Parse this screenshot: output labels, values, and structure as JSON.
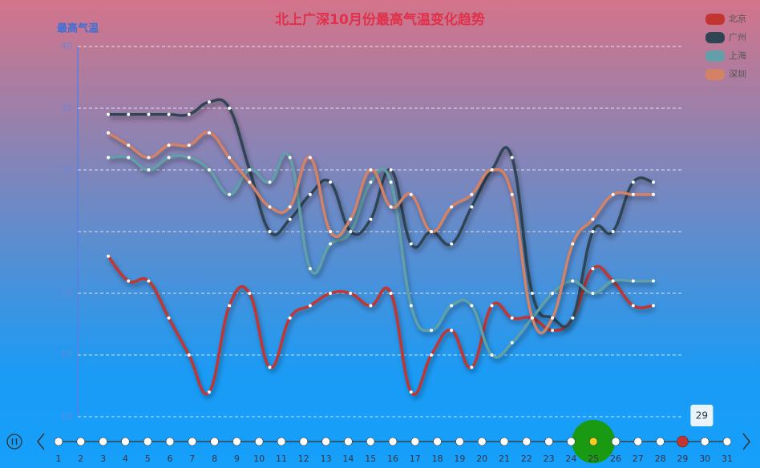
{
  "chart_data": {
    "type": "line",
    "title": "北上广深10月份最高气温变化趋势",
    "y_axis_label": "最高气温",
    "categories": [
      null,
      null,
      null,
      null,
      null,
      null,
      null,
      null,
      null,
      null,
      null,
      null,
      null,
      null,
      null,
      null,
      null,
      null,
      null,
      null,
      null,
      null,
      null,
      null,
      null,
      null,
      null,
      null
    ],
    "series": [
      {
        "name": "北京",
        "color": "#c23531",
        "values": [
          23,
          21,
          21,
          18,
          15,
          12,
          19,
          20,
          14,
          18,
          19,
          20,
          20,
          19,
          20,
          12,
          15,
          17,
          14,
          19,
          18,
          18,
          17,
          18,
          22,
          21,
          19,
          19
        ]
      },
      {
        "name": "广州",
        "color": "#2f4554",
        "values": [
          34.5,
          34.5,
          34.5,
          34.5,
          34.5,
          35.5,
          35,
          30,
          25,
          26,
          28,
          29,
          25,
          26,
          30,
          24,
          25,
          24,
          27,
          30,
          31,
          20,
          18,
          18,
          25,
          25,
          29,
          29
        ]
      },
      {
        "name": "上海",
        "color": "#61a0a8",
        "values": [
          31,
          31,
          30,
          31,
          31,
          30,
          28,
          30,
          29,
          31,
          22,
          24,
          25,
          29,
          29,
          19,
          17,
          19,
          19,
          15,
          16,
          18,
          20,
          21,
          20,
          21,
          21,
          21
        ]
      },
      {
        "name": "深圳",
        "color": "#d48265",
        "values": [
          33,
          32,
          31,
          32,
          32,
          33,
          31,
          29,
          27,
          27,
          31,
          25,
          26,
          30,
          27,
          28,
          25,
          27,
          28,
          30,
          28,
          18,
          18,
          24,
          26,
          28,
          28,
          28
        ]
      }
    ],
    "ylim": [
      10,
      40
    ],
    "yticks": [
      10,
      15,
      20,
      25,
      30,
      35,
      40
    ],
    "grid": true,
    "legend": "top-right",
    "timeline": {
      "labels": [
        1,
        2,
        3,
        4,
        5,
        6,
        7,
        8,
        9,
        10,
        11,
        12,
        13,
        14,
        15,
        16,
        17,
        18,
        19,
        20,
        21,
        22,
        23,
        24,
        25,
        26,
        27,
        28,
        29,
        30,
        31
      ],
      "tooltip": "29"
    }
  }
}
